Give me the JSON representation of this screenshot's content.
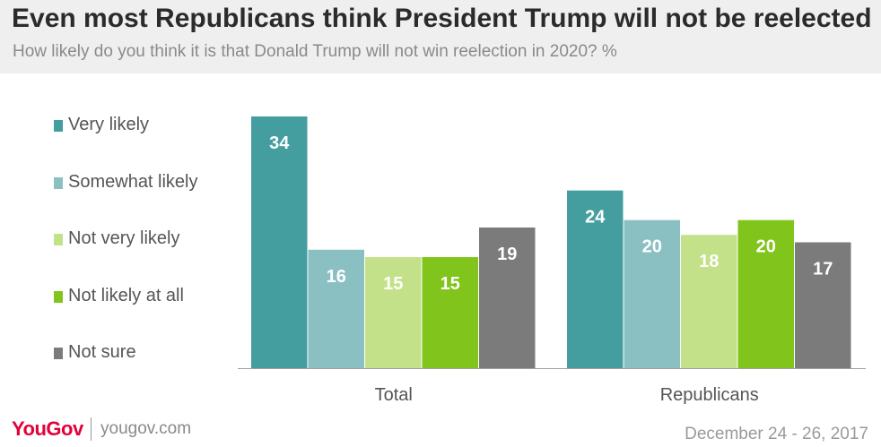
{
  "header": {
    "title": "Even most Republicans think President Trump will not be reelected",
    "subtitle": "How likely do you think it is that Donald Trump will not win reelection in 2020? %"
  },
  "chart_data": {
    "type": "bar",
    "categories": [
      "Total",
      "Republicans"
    ],
    "series": [
      {
        "name": "Very likely",
        "color": "#449ea0",
        "values": [
          34,
          24
        ]
      },
      {
        "name": "Somewhat likely",
        "color": "#8bc0c3",
        "values": [
          16,
          20
        ]
      },
      {
        "name": "Not very likely",
        "color": "#c3e189",
        "values": [
          15,
          18
        ]
      },
      {
        "name": "Not likely at all",
        "color": "#80c41c",
        "values": [
          15,
          20
        ]
      },
      {
        "name": "Not sure",
        "color": "#7b7b7b",
        "values": [
          19,
          17
        ]
      }
    ],
    "ylim": [
      0,
      34
    ],
    "grid": false,
    "legend_position": "left",
    "data_labels": true
  },
  "footer": {
    "logo": "YouGov",
    "site": "yougov.com",
    "date": "December 24 - 26, 2017"
  }
}
